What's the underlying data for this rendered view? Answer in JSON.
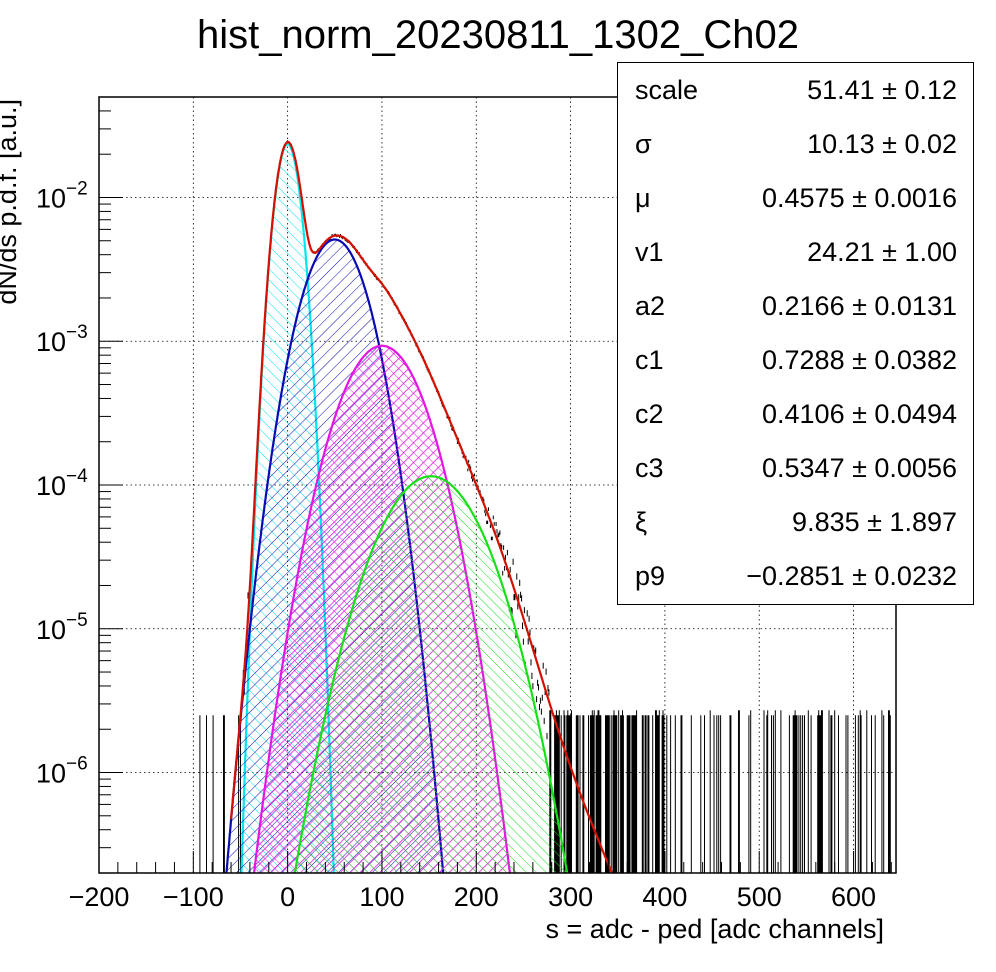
{
  "chart_data": {
    "type": "line",
    "title": "hist_norm_20230811_1302_Ch02",
    "xlabel": "s = adc - ped [adc channels]",
    "ylabel": "dN/ds p.d.f. [a.u.]",
    "xlim": [
      -200,
      645
    ],
    "ylim": [
      2e-07,
      0.05
    ],
    "yscale": "log",
    "grid": true,
    "x_ticks": [
      -200,
      -100,
      0,
      100,
      200,
      300,
      400,
      500,
      600
    ],
    "x_tick_labels": [
      "−200",
      "−100",
      "0",
      "100",
      "200",
      "300",
      "400",
      "500",
      "600"
    ],
    "y_ticks": [
      {
        "value": 0.01,
        "mantissa": "10",
        "exponent": "−2"
      },
      {
        "value": 0.001,
        "mantissa": "10",
        "exponent": "−3"
      },
      {
        "value": 0.0001,
        "mantissa": "10",
        "exponent": "−4"
      },
      {
        "value": 1e-05,
        "mantissa": "10",
        "exponent": "−5"
      },
      {
        "value": 1e-06,
        "mantissa": "10",
        "exponent": "−6"
      }
    ],
    "components": [
      {
        "color": "#00e5ee",
        "fill": "cyan-hatch",
        "mu": 0,
        "sigma": 10.13,
        "peak": 0.0235
      },
      {
        "color": "#0a0ab4",
        "fill": "blue-hatch",
        "mu": 50,
        "sigma": 25.5,
        "peak": 0.0051
      },
      {
        "color": "#e316e3",
        "fill": "magenta-hatch",
        "mu": 100,
        "sigma": 33.0,
        "peak": 0.00093
      },
      {
        "color": "#17e017",
        "fill": "green-hatch",
        "mu": 152,
        "sigma": 40.5,
        "peak": 0.000115
      }
    ],
    "total_fit_color": "#d41000",
    "histogram_color": "#000000",
    "stats": [
      {
        "name": "scale",
        "value": "51.41 ± 0.12"
      },
      {
        "name": "σ",
        "value": "10.13 ± 0.02"
      },
      {
        "name": "μ",
        "value": "0.4575 ± 0.0016"
      },
      {
        "name": "v1",
        "value": "24.21 ± 1.00"
      },
      {
        "name": "a2",
        "value": "0.2166 ± 0.0131"
      },
      {
        "name": "c1",
        "value": "0.7288 ± 0.0382"
      },
      {
        "name": "c2",
        "value": "0.4106 ± 0.0494"
      },
      {
        "name": "c3",
        "value": "0.5347 ± 0.0056"
      },
      {
        "name": "ξ",
        "value": "9.835 ± 1.897"
      },
      {
        "name": "p9",
        "value": "−0.2851 ± 0.0232"
      }
    ]
  }
}
